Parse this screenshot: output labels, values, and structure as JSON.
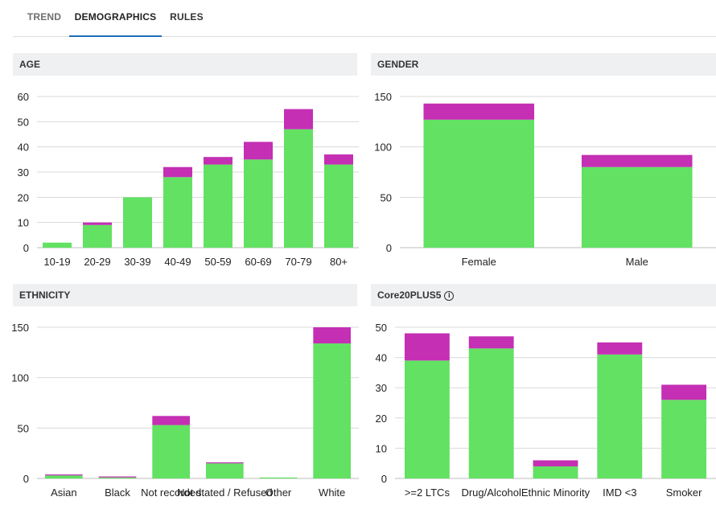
{
  "tabs": [
    {
      "label": "TREND"
    },
    {
      "label": "DEMOGRAPHICS"
    },
    {
      "label": "RULES"
    }
  ],
  "colors": {
    "base": "#62e162",
    "top": "#c42fb4",
    "grid": "#d9d9d9",
    "tab_underline": "#1f6fb5"
  },
  "chart_data": [
    {
      "type": "bar",
      "stacked": true,
      "title": "AGE",
      "categories": [
        "10-19",
        "20-29",
        "30-39",
        "40-49",
        "50-59",
        "60-69",
        "70-79",
        "80+"
      ],
      "series": [
        {
          "name": "base",
          "values": [
            2,
            9,
            20,
            28,
            33,
            35,
            47,
            33
          ]
        },
        {
          "name": "top",
          "values": [
            0,
            1,
            0,
            4,
            3,
            7,
            8,
            4
          ]
        }
      ],
      "ylim": [
        0,
        60
      ],
      "yticks": [
        0,
        10,
        20,
        30,
        40,
        50,
        60
      ]
    },
    {
      "type": "bar",
      "stacked": true,
      "title": "GENDER",
      "categories": [
        "Female",
        "Male"
      ],
      "series": [
        {
          "name": "base",
          "values": [
            127,
            80
          ]
        },
        {
          "name": "top",
          "values": [
            16,
            12
          ]
        }
      ],
      "ylim": [
        0,
        150
      ],
      "yticks": [
        0,
        50,
        100,
        150
      ]
    },
    {
      "type": "bar",
      "stacked": true,
      "title": "ETHNICITY",
      "categories": [
        "Asian",
        "Black",
        "Not recorded",
        "Not stated / Refused",
        "Other",
        "White"
      ],
      "series": [
        {
          "name": "base",
          "values": [
            3,
            1,
            53,
            15,
            1,
            134
          ]
        },
        {
          "name": "top",
          "values": [
            1,
            1,
            9,
            1,
            0,
            16
          ]
        }
      ],
      "ylim": [
        0,
        150
      ],
      "yticks": [
        0,
        50,
        100,
        150
      ]
    },
    {
      "type": "bar",
      "stacked": true,
      "title": "Core20PLUS5",
      "categories": [
        ">=2 LTCs",
        "Drug/Alcohol",
        "Ethnic Minority",
        "IMD <3",
        "Smoker"
      ],
      "series": [
        {
          "name": "base",
          "values": [
            39,
            43,
            4,
            41,
            26
          ]
        },
        {
          "name": "top",
          "values": [
            9,
            4,
            2,
            4,
            5
          ]
        }
      ],
      "ylim": [
        0,
        50
      ],
      "yticks": [
        0,
        10,
        20,
        30,
        40,
        50
      ]
    }
  ]
}
